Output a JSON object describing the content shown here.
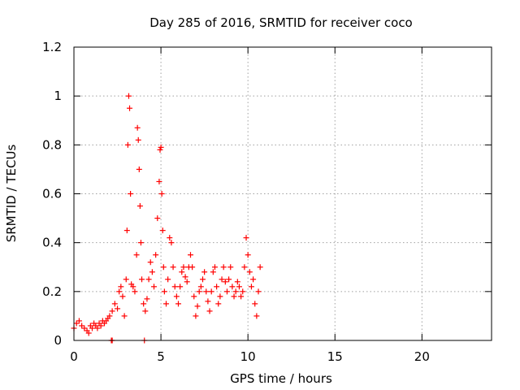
{
  "chart_data": {
    "type": "scatter",
    "title": "Day 285 of 2016, SRMTID for receiver coco",
    "xlabel": "GPS time / hours",
    "ylabel": "SRMTID / TECUs",
    "xlim": [
      0,
      24
    ],
    "ylim": [
      0,
      1.2
    ],
    "xticks": [
      0,
      5,
      10,
      15,
      20
    ],
    "xtick_labels": [
      "0",
      "5",
      "10",
      "15",
      "20"
    ],
    "yticks": [
      0,
      0.2,
      0.4,
      0.6,
      0.8,
      1.0,
      1.2
    ],
    "ytick_labels": [
      "0",
      "0.2",
      "0.4",
      "0.6",
      "0.8",
      "1",
      "1.2"
    ],
    "grid": true,
    "marker": "plus",
    "series": [
      {
        "name": "SRMTID",
        "color": "#ff0000",
        "x": [
          0.0,
          0.15,
          0.3,
          0.45,
          0.6,
          0.75,
          0.85,
          0.95,
          1.05,
          1.15,
          1.25,
          1.35,
          1.45,
          1.55,
          1.65,
          1.75,
          1.85,
          1.95,
          2.05,
          2.2,
          2.35,
          2.5,
          2.6,
          2.7,
          2.8,
          2.9,
          3.0,
          3.05,
          3.1,
          3.15,
          3.2,
          3.25,
          3.3,
          3.4,
          3.5,
          3.6,
          3.65,
          3.7,
          3.75,
          3.8,
          3.85,
          3.9,
          4.0,
          4.1,
          4.2,
          4.3,
          4.4,
          4.5,
          4.6,
          4.7,
          4.8,
          4.9,
          4.95,
          5.0,
          5.05,
          5.1,
          5.15,
          5.2,
          5.3,
          5.4,
          5.5,
          5.6,
          5.7,
          5.8,
          5.9,
          6.0,
          6.1,
          6.2,
          6.3,
          6.4,
          6.5,
          6.6,
          6.7,
          6.8,
          6.9,
          7.0,
          7.1,
          7.2,
          7.3,
          7.4,
          7.5,
          7.6,
          7.7,
          7.8,
          7.9,
          8.0,
          8.1,
          8.2,
          8.3,
          8.4,
          8.5,
          8.6,
          8.7,
          8.8,
          8.9,
          9.0,
          9.1,
          9.2,
          9.3,
          9.4,
          9.5,
          9.6,
          9.7,
          9.8,
          9.9,
          10.0,
          10.1,
          10.2,
          10.3,
          10.4,
          10.5,
          10.6,
          10.7,
          2.15,
          2.2,
          4.05
        ],
        "y": [
          0.05,
          0.07,
          0.08,
          0.06,
          0.05,
          0.04,
          0.03,
          0.06,
          0.05,
          0.07,
          0.06,
          0.05,
          0.07,
          0.06,
          0.08,
          0.07,
          0.08,
          0.09,
          0.1,
          0.12,
          0.15,
          0.13,
          0.2,
          0.22,
          0.18,
          0.1,
          0.25,
          0.45,
          0.8,
          1.0,
          0.95,
          0.6,
          0.23,
          0.22,
          0.2,
          0.35,
          0.87,
          0.82,
          0.7,
          0.55,
          0.4,
          0.25,
          0.15,
          0.12,
          0.17,
          0.25,
          0.32,
          0.28,
          0.22,
          0.35,
          0.5,
          0.65,
          0.78,
          0.79,
          0.6,
          0.45,
          0.3,
          0.2,
          0.15,
          0.25,
          0.42,
          0.4,
          0.3,
          0.22,
          0.18,
          0.15,
          0.22,
          0.28,
          0.3,
          0.26,
          0.24,
          0.3,
          0.35,
          0.3,
          0.18,
          0.1,
          0.14,
          0.2,
          0.22,
          0.25,
          0.28,
          0.2,
          0.16,
          0.12,
          0.2,
          0.28,
          0.3,
          0.22,
          0.15,
          0.18,
          0.25,
          0.3,
          0.24,
          0.2,
          0.25,
          0.3,
          0.22,
          0.18,
          0.2,
          0.24,
          0.22,
          0.18,
          0.2,
          0.3,
          0.42,
          0.35,
          0.28,
          0.22,
          0.25,
          0.15,
          0.1,
          0.2,
          0.3,
          0.0,
          0.0,
          0.0
        ]
      }
    ]
  }
}
